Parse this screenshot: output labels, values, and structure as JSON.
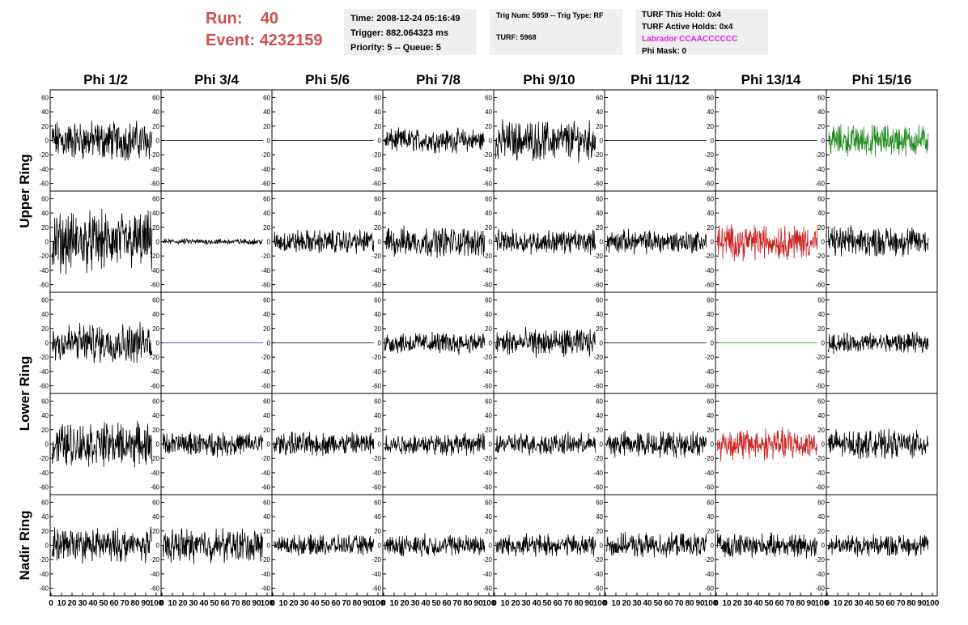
{
  "header": {
    "run_label": "Run:",
    "run_value": "40",
    "event_label": "Event:",
    "event_value": "4232159",
    "time": "Time: 2008-12-24 05:16:49",
    "trigger": "Trigger: 882.064323 ms",
    "priority": "Priority: 5 -- Queue: 5",
    "trig_num": "Trig Num: 5959 -- Trig Type: RF",
    "turf": "TURF: 5968",
    "turf_this_hold": "TURF This Hold: 0x4",
    "turf_active_holds": "TURF Active Holds: 0x4",
    "labrador": "Labrador CCAACCCCCC",
    "phi_mask": "Phi Mask: 0"
  },
  "colors": {
    "run_text": "#d05050",
    "labrador_text": "#e020e0",
    "trace_default": "#000000",
    "trace_green": "#228b22",
    "trace_red": "#cc2020",
    "trace_blue": "#2020cc",
    "info_box_bg": "#efefef"
  },
  "chart_data": {
    "type": "line",
    "columns": [
      "Phi 1/2",
      "Phi 3/4",
      "Phi 5/6",
      "Phi 7/8",
      "Phi 9/10",
      "Phi 11/12",
      "Phi 13/14",
      "Phi 15/16"
    ],
    "row_groups": [
      "Upper Ring",
      "Lower Ring",
      "Nadir Ring"
    ],
    "panel_rows": 5,
    "row_group_of_panel_row": [
      0,
      0,
      1,
      1,
      2
    ],
    "ylim": [
      -65,
      65
    ],
    "yticks": [
      -60,
      -40,
      -20,
      0,
      20,
      40,
      60
    ],
    "xlim": [
      0,
      100
    ],
    "xticks": [
      0,
      10,
      20,
      30,
      40,
      50,
      60,
      70,
      80,
      90,
      100
    ],
    "samples": 260,
    "panels": [
      [
        {
          "amp": 20,
          "color": "default"
        },
        {
          "amp": 0,
          "color": "default"
        },
        {
          "amp": 0,
          "color": "default"
        },
        {
          "amp": 12,
          "color": "default"
        },
        {
          "amp": 20,
          "color": "default"
        },
        {
          "amp": 0,
          "color": "default"
        },
        {
          "amp": 0,
          "color": "default"
        },
        {
          "amp": 16,
          "color": "green"
        }
      ],
      [
        {
          "amp": 30,
          "color": "default"
        },
        {
          "amp": 3,
          "color": "default"
        },
        {
          "amp": 12,
          "color": "default"
        },
        {
          "amp": 15,
          "color": "default"
        },
        {
          "amp": 12,
          "color": "default"
        },
        {
          "amp": 12,
          "color": "default"
        },
        {
          "amp": 18,
          "color": "red"
        },
        {
          "amp": 15,
          "color": "default"
        }
      ],
      [
        {
          "amp": 20,
          "color": "default"
        },
        {
          "amp": 0,
          "color": "blue"
        },
        {
          "amp": 0,
          "color": "default"
        },
        {
          "amp": 11,
          "color": "default"
        },
        {
          "amp": 14,
          "color": "default"
        },
        {
          "amp": 0,
          "color": "default"
        },
        {
          "amp": 0,
          "color": "green"
        },
        {
          "amp": 10,
          "color": "default"
        }
      ],
      [
        {
          "amp": 22,
          "color": "default"
        },
        {
          "amp": 12,
          "color": "default"
        },
        {
          "amp": 12,
          "color": "default"
        },
        {
          "amp": 11,
          "color": "default"
        },
        {
          "amp": 11,
          "color": "default"
        },
        {
          "amp": 13,
          "color": "default"
        },
        {
          "amp": 16,
          "color": "red"
        },
        {
          "amp": 14,
          "color": "default"
        }
      ],
      [
        {
          "amp": 17,
          "color": "default"
        },
        {
          "amp": 17,
          "color": "default"
        },
        {
          "amp": 10,
          "color": "default"
        },
        {
          "amp": 11,
          "color": "default"
        },
        {
          "amp": 11,
          "color": "default"
        },
        {
          "amp": 12,
          "color": "default"
        },
        {
          "amp": 12,
          "color": "default"
        },
        {
          "amp": 11,
          "color": "default"
        }
      ]
    ]
  }
}
